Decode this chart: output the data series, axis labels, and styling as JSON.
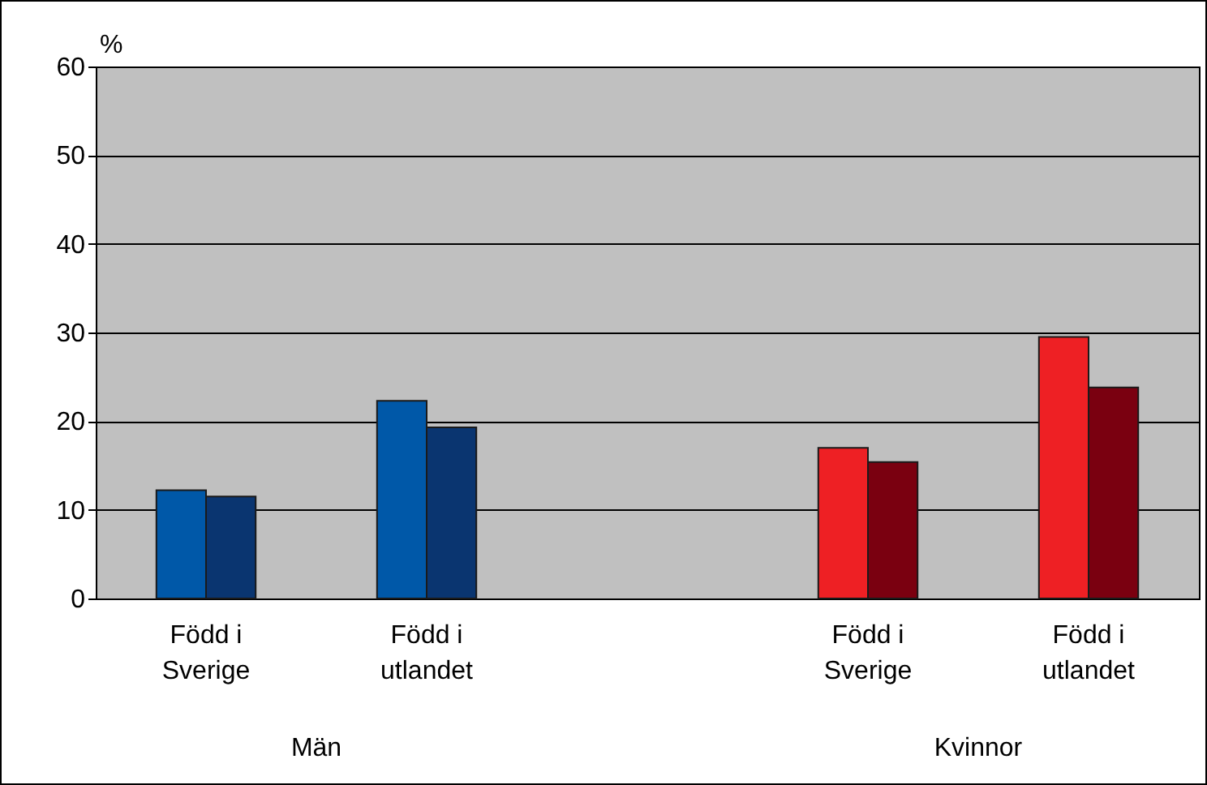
{
  "chart_data": {
    "type": "bar",
    "ylabel": "%",
    "categories": [
      "Född i Sverige",
      "Född i utlandet",
      null,
      "Född i Sverige",
      "Född i utlandet"
    ],
    "series": [
      {
        "colors": [
          "#0058a8",
          "#0058a8",
          null,
          "#ee2024",
          "#ee2024"
        ],
        "values": [
          12.2,
          22.3,
          null,
          17,
          29.5
        ]
      },
      {
        "colors": [
          "#0a3570",
          "#0a3570",
          null,
          "#7a0010",
          "#7a0010"
        ],
        "values": [
          11.5,
          19.3,
          null,
          15.4,
          23.8
        ]
      }
    ],
    "ylim": [
      0,
      60
    ],
    "yticks": [
      0,
      10,
      20,
      30,
      40,
      50,
      60
    ],
    "grid": "y",
    "annotations": [
      "Män",
      "Kvinnor"
    ]
  }
}
